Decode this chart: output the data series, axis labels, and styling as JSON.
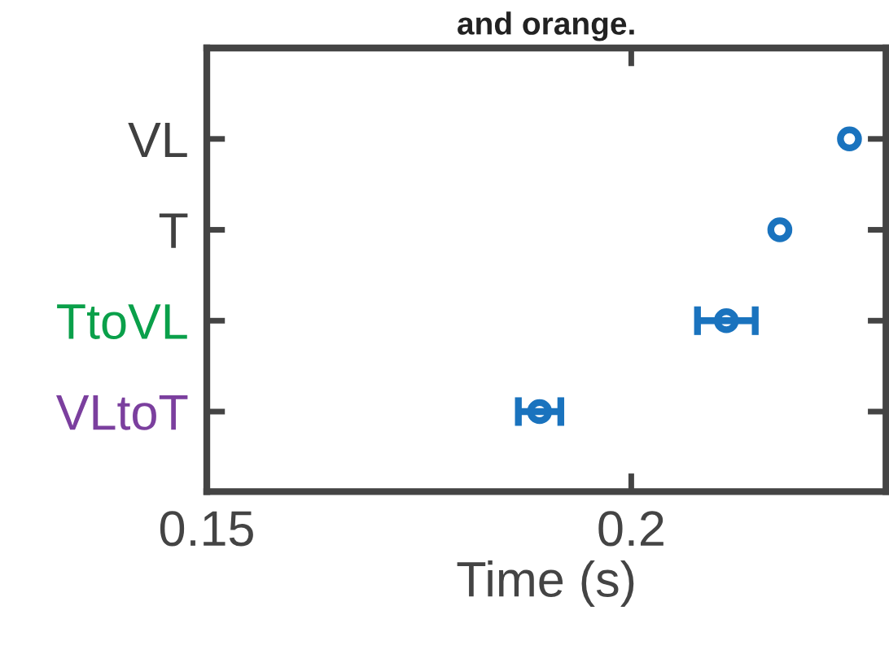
{
  "chart_data": {
    "type": "scatter",
    "title": "and orange.",
    "xlabel": "Time (s)",
    "categories": [
      "VL",
      "T",
      "TtoVL",
      "VLtoT"
    ],
    "orientation": "horizontal",
    "xlim": [
      0.15,
      0.23
    ],
    "xticks": [
      0.15,
      0.2
    ],
    "series": [
      {
        "color": "#1a73be",
        "values": [
          0.2257,
          0.2175,
          0.2112,
          0.1892
        ],
        "errors": [
          null,
          null,
          0.0034,
          0.0025
        ]
      }
    ],
    "marker": "circle",
    "grid": false,
    "legend": false
  }
}
